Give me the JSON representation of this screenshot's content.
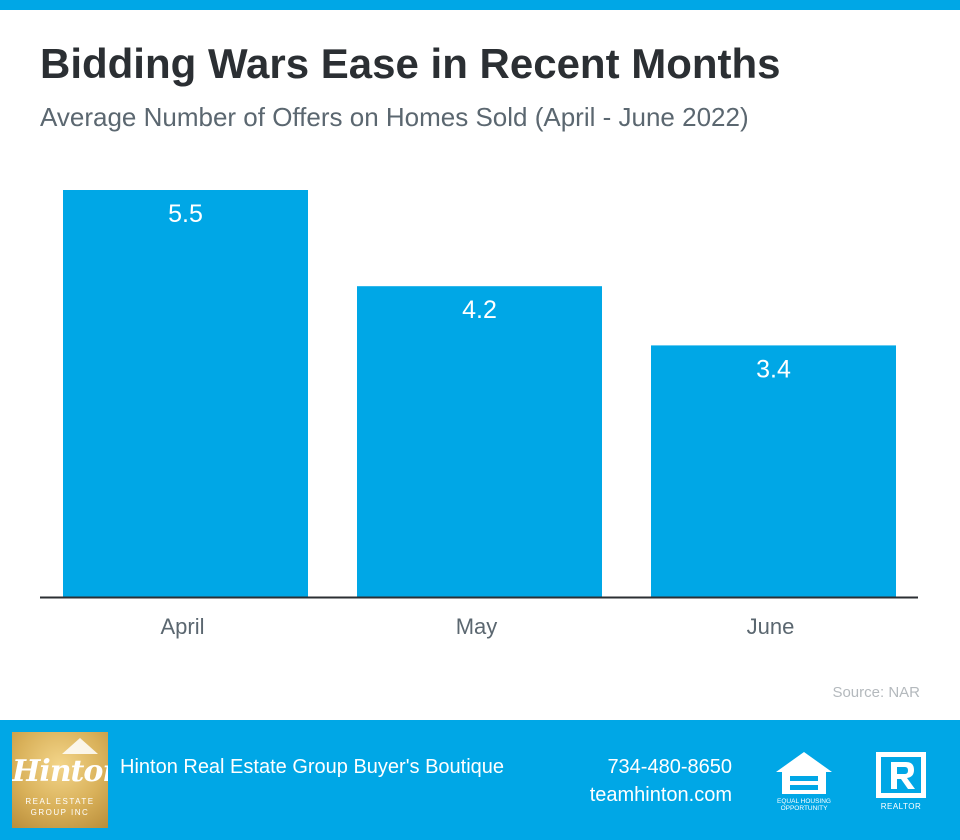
{
  "header": {
    "title": "Bidding Wars Ease in Recent Months",
    "subtitle": "Average Number of Offers on Homes Sold (April - June 2022)"
  },
  "chart_data": {
    "type": "bar",
    "title": "Bidding Wars Ease in Recent Months",
    "subtitle": "Average Number of Offers on Homes Sold (April - June 2022)",
    "categories": [
      "April",
      "May",
      "June"
    ],
    "values": [
      5.5,
      4.2,
      3.4
    ],
    "value_labels": [
      "5.5",
      "4.2",
      "3.4"
    ],
    "ylim": [
      0,
      5.5
    ],
    "grid": false,
    "legend": "none",
    "bar_color": "#00a7e6",
    "axis_color": "#2b2f33"
  },
  "source": "Source: NAR",
  "footer": {
    "background": "#00a7e6",
    "logo": {
      "wordmark": "Hinton",
      "tagline": "REAL ESTATE GROUP INC"
    },
    "company": "Hinton Real Estate Group Buyer's Boutique",
    "phone": "734-480-8650",
    "website": "teamhinton.com",
    "badges": [
      {
        "icon": "equal-housing-opportunity-icon",
        "text": "EQUAL HOUSING OPPORTUNITY"
      },
      {
        "icon": "realtor-icon",
        "text": "REALTOR"
      }
    ]
  }
}
